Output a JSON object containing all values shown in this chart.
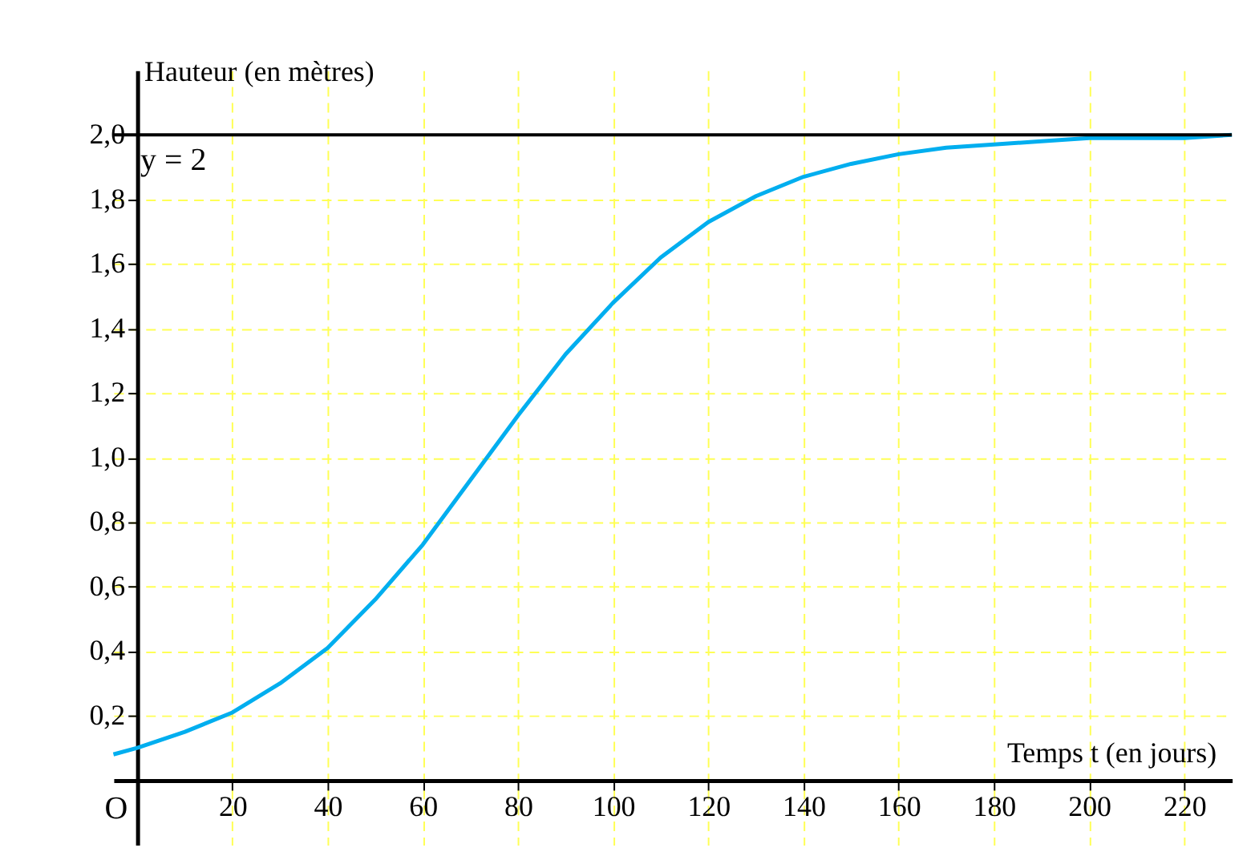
{
  "chart_data": {
    "type": "line",
    "xlabel": "Temps t (en jours)",
    "ylabel": "Hauteur (en mètres)",
    "x": [
      -5,
      0,
      10,
      20,
      30,
      40,
      50,
      60,
      70,
      80,
      90,
      100,
      110,
      120,
      130,
      140,
      150,
      160,
      170,
      180,
      190,
      200,
      210,
      220,
      230
    ],
    "series": [
      {
        "color": "#00aeef",
        "values": [
          0.08,
          0.1,
          0.15,
          0.21,
          0.3,
          0.41,
          0.56,
          0.73,
          0.93,
          1.13,
          1.32,
          1.48,
          1.62,
          1.73,
          1.81,
          1.87,
          1.91,
          1.94,
          1.96,
          1.97,
          1.98,
          1.99,
          1.99,
          1.99,
          2.0
        ]
      }
    ],
    "xlim": [
      -5,
      230
    ],
    "ylim": [
      -0.2,
      2.2
    ],
    "xticks": [
      20,
      40,
      60,
      80,
      100,
      120,
      140,
      160,
      180,
      200,
      220
    ],
    "yticks": [
      {
        "value": 0.2,
        "label": "0,2"
      },
      {
        "value": 0.4,
        "label": "0,4"
      },
      {
        "value": 0.6,
        "label": "0,6"
      },
      {
        "value": 0.8,
        "label": "0,8"
      },
      {
        "value": 1.0,
        "label": "1,0"
      },
      {
        "value": 1.2,
        "label": "1,2"
      },
      {
        "value": 1.4,
        "label": "1,4"
      },
      {
        "value": 1.6,
        "label": "1,6"
      },
      {
        "value": 1.8,
        "label": "1,8"
      },
      {
        "value": 2.0,
        "label": "2,0"
      }
    ],
    "ref_lines": [
      {
        "axis": "y",
        "value": 2,
        "label": "y = 2",
        "color": "#000000"
      }
    ],
    "annotations": [
      "O"
    ],
    "grid": true,
    "marker": "none",
    "line_style": "solid"
  }
}
